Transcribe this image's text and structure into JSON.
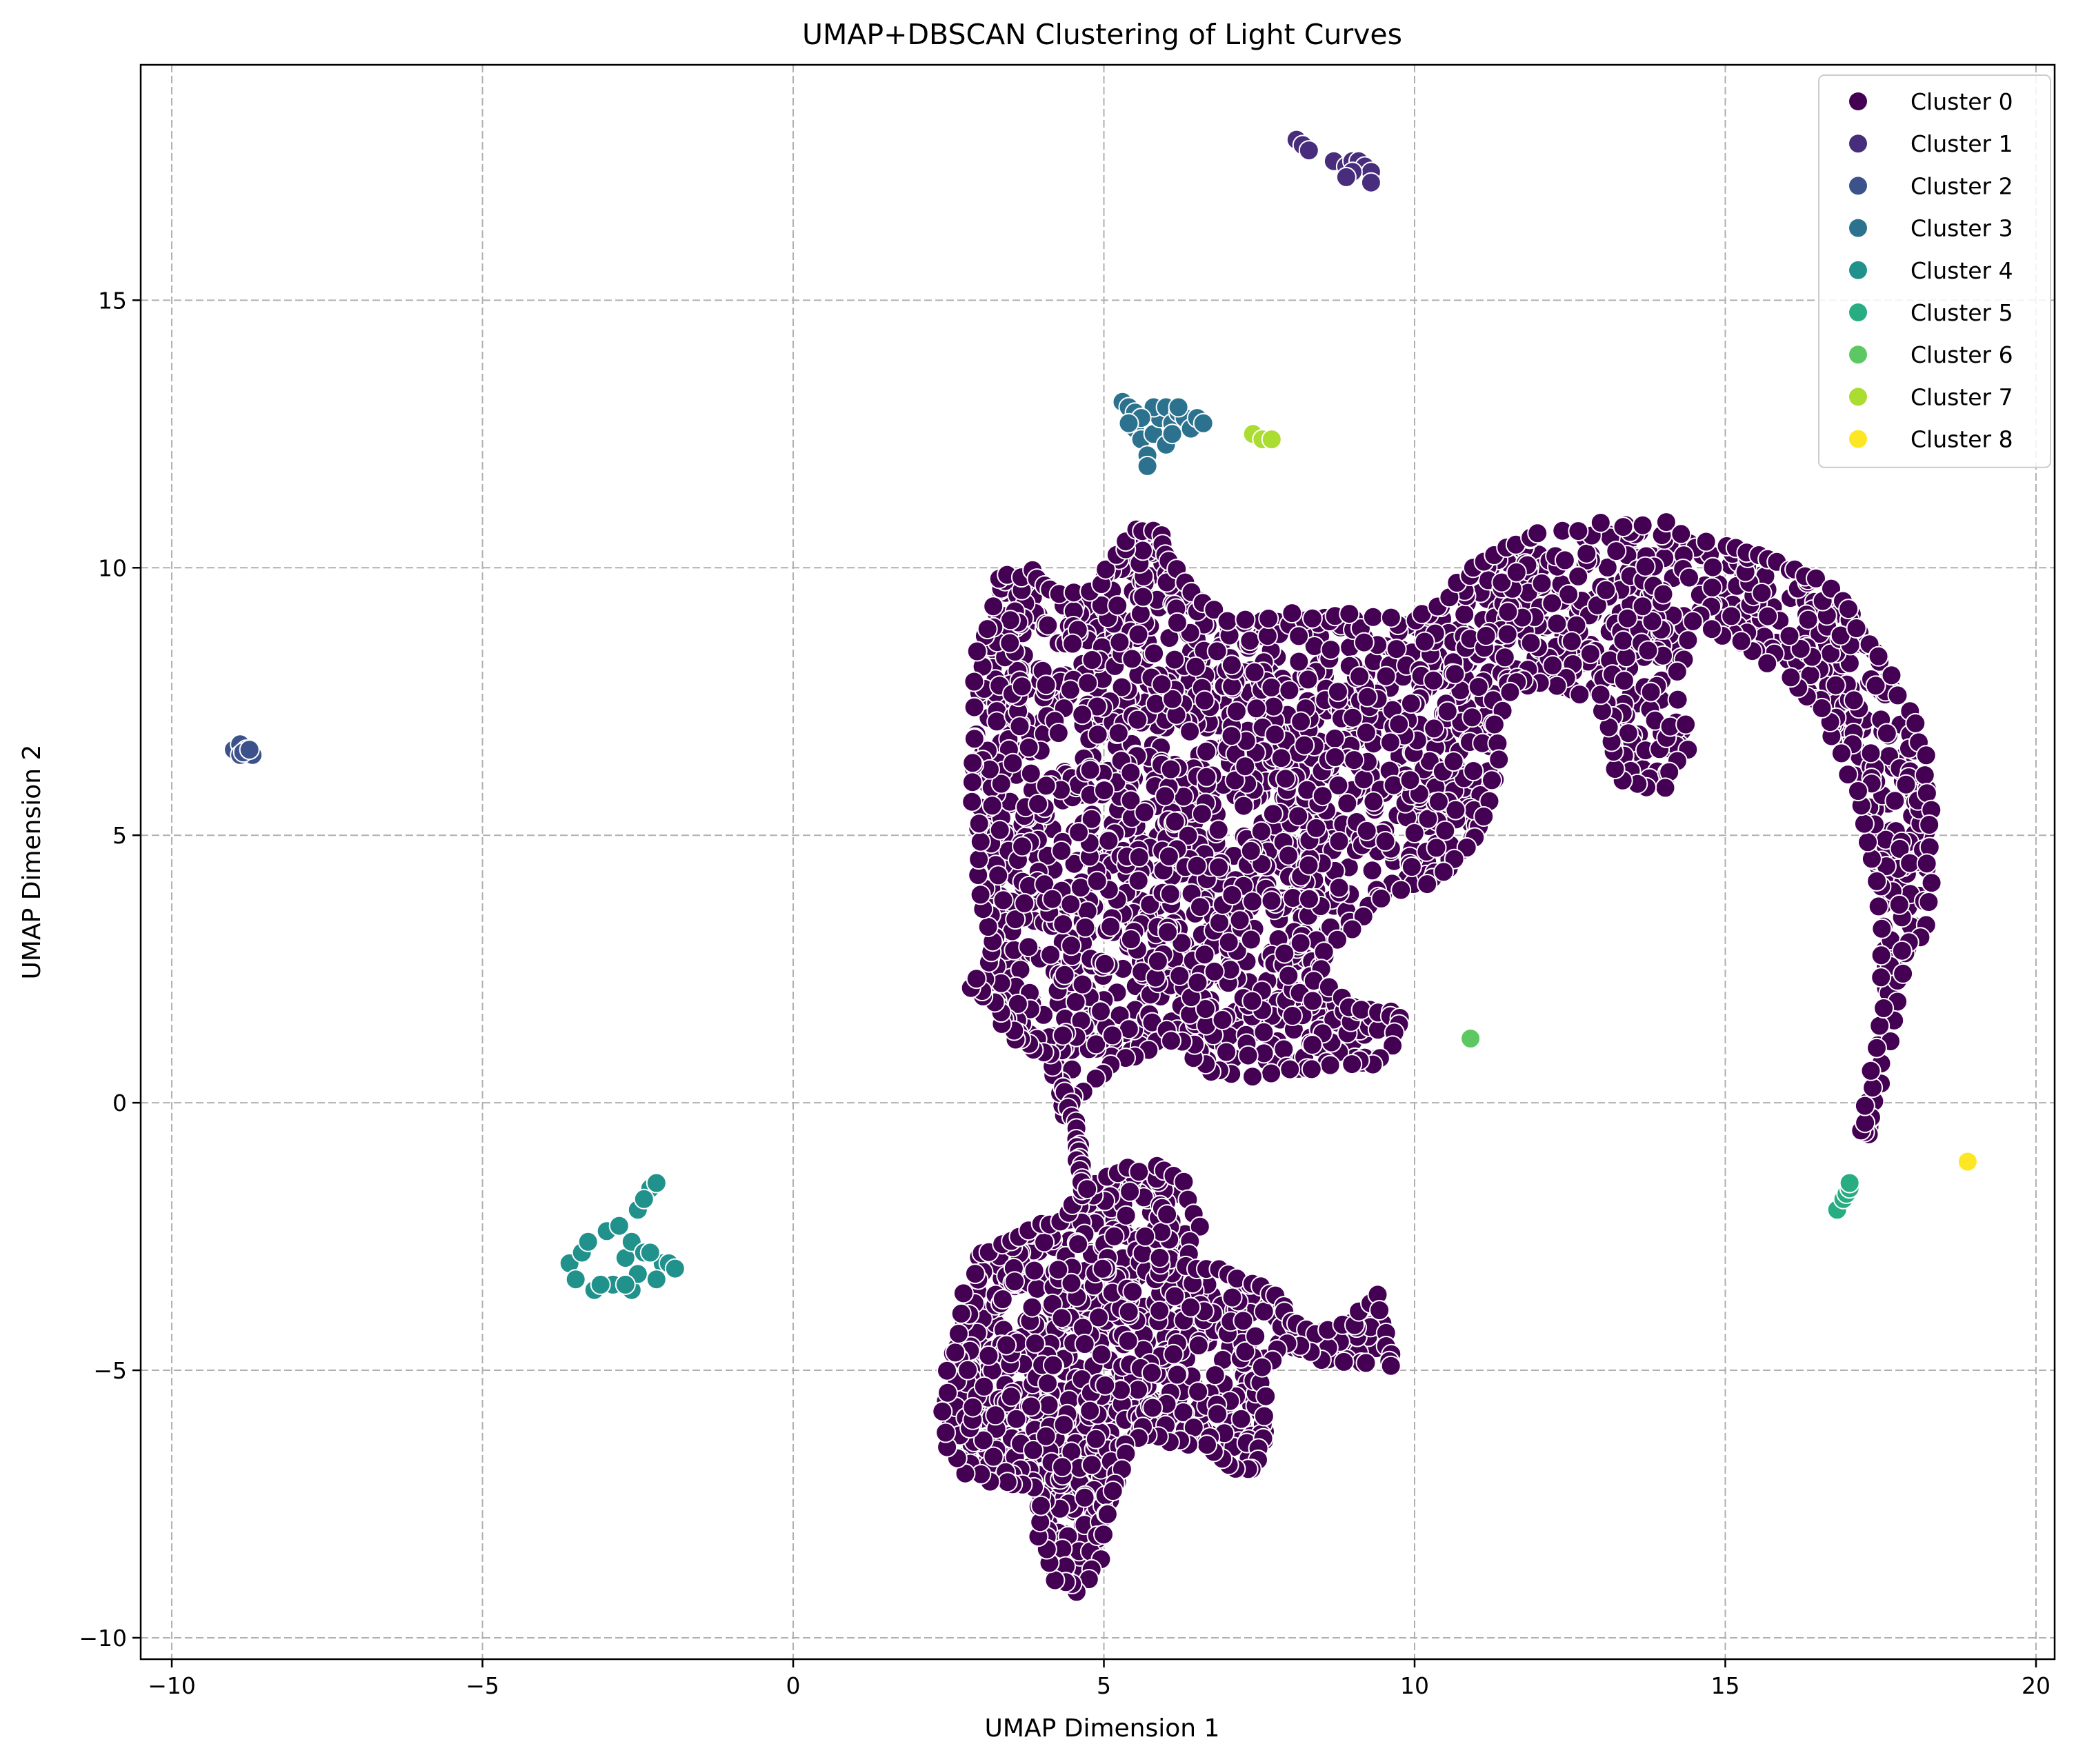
{
  "chart_data": {
    "type": "scatter",
    "title": "UMAP+DBSCAN Clustering of Light Curves",
    "xlabel": "UMAP Dimension 1",
    "ylabel": "UMAP Dimension 2",
    "xlim": [
      -10.5,
      20.3
    ],
    "ylim": [
      -10.4,
      19.4
    ],
    "xticks": [
      -10,
      -5,
      0,
      5,
      10,
      15,
      20
    ],
    "yticks": [
      -10,
      -5,
      0,
      5,
      10,
      15
    ],
    "xtick_labels": [
      "−10",
      "−5",
      "0",
      "5",
      "10",
      "15",
      "20"
    ],
    "ytick_labels": [
      "−10",
      "−5",
      "0",
      "5",
      "10",
      "15"
    ],
    "grid": true,
    "legend_position": "top-right",
    "series": [
      {
        "name": "Cluster 0",
        "color": "#440154",
        "regions": [
          {
            "kind": "blob",
            "outline": [
              [
                2.9,
                6.8
              ],
              [
                3.0,
                8.4
              ],
              [
                3.3,
                9.8
              ],
              [
                3.8,
                9.9
              ],
              [
                4.1,
                9.6
              ],
              [
                4.8,
                9.5
              ],
              [
                5.2,
                10.2
              ],
              [
                5.5,
                10.7
              ],
              [
                5.9,
                10.6
              ],
              [
                6.0,
                10.1
              ],
              [
                6.4,
                9.6
              ],
              [
                7.0,
                9.0
              ],
              [
                8.0,
                9.1
              ],
              [
                9.0,
                9.1
              ],
              [
                10.0,
                9.0
              ],
              [
                10.5,
                9.5
              ],
              [
                11.0,
                10.0
              ],
              [
                11.5,
                10.4
              ],
              [
                12.0,
                10.6
              ],
              [
                13.0,
                10.8
              ],
              [
                14.0,
                10.8
              ],
              [
                15.0,
                10.4
              ],
              [
                15.5,
                10.2
              ],
              [
                16.0,
                10.0
              ],
              [
                16.5,
                9.8
              ],
              [
                17.0,
                9.2
              ],
              [
                17.5,
                8.3
              ],
              [
                18.0,
                7.3
              ],
              [
                18.2,
                6.5
              ],
              [
                18.3,
                5.5
              ],
              [
                18.3,
                4.5
              ],
              [
                18.2,
                3.3
              ],
              [
                17.9,
                2.8
              ],
              [
                17.7,
                1.5
              ],
              [
                17.5,
                0.3
              ],
              [
                17.3,
                -0.6
              ],
              [
                17.2,
                -0.4
              ],
              [
                17.4,
                0.6
              ],
              [
                17.5,
                1.8
              ],
              [
                17.5,
                3.3
              ],
              [
                17.4,
                4.5
              ],
              [
                17.2,
                5.5
              ],
              [
                16.9,
                6.5
              ],
              [
                16.5,
                7.4
              ],
              [
                16.0,
                8.0
              ],
              [
                15.2,
                8.6
              ],
              [
                14.5,
                9.0
              ],
              [
                14.2,
                8.0
              ],
              [
                14.4,
                6.6
              ],
              [
                14.0,
                5.9
              ],
              [
                13.3,
                6.0
              ],
              [
                13.2,
                6.8
              ],
              [
                13.0,
                7.6
              ],
              [
                12.0,
                7.8
              ],
              [
                11.6,
                7.9
              ],
              [
                11.3,
                7.1
              ],
              [
                11.3,
                6.0
              ],
              [
                11.0,
                5.0
              ],
              [
                10.5,
                4.3
              ],
              [
                9.5,
                3.8
              ],
              [
                8.7,
                3.0
              ],
              [
                8.4,
                2.3
              ],
              [
                9.0,
                1.8
              ],
              [
                9.6,
                1.7
              ],
              [
                9.8,
                1.5
              ],
              [
                9.5,
                0.8
              ],
              [
                9.0,
                0.7
              ],
              [
                8.0,
                0.6
              ],
              [
                7.0,
                0.5
              ],
              [
                6.6,
                0.7
              ],
              [
                6.3,
                1.2
              ],
              [
                5.5,
                0.9
              ],
              [
                5.0,
                0.6
              ],
              [
                4.5,
                0.1
              ],
              [
                4.4,
                -0.2
              ],
              [
                4.3,
                0.4
              ],
              [
                4.1,
                0.9
              ],
              [
                3.8,
                1.1
              ],
              [
                3.5,
                1.3
              ],
              [
                3.2,
                1.9
              ],
              [
                2.9,
                2.1
              ],
              [
                3.2,
                2.8
              ],
              [
                3.1,
                3.6
              ],
              [
                3.0,
                4.6
              ],
              [
                2.9,
                5.6
              ]
            ],
            "count": 2400
          },
          {
            "kind": "blob",
            "outline": [
              [
                3.0,
                -2.8
              ],
              [
                3.5,
                -2.6
              ],
              [
                4.0,
                -2.3
              ],
              [
                4.4,
                -2.1
              ],
              [
                4.7,
                -1.6
              ],
              [
                5.2,
                -1.3
              ],
              [
                5.8,
                -1.2
              ],
              [
                6.3,
                -1.5
              ],
              [
                6.5,
                -2.3
              ],
              [
                6.3,
                -3.1
              ],
              [
                6.8,
                -3.1
              ],
              [
                7.4,
                -3.4
              ],
              [
                7.8,
                -3.6
              ],
              [
                8.0,
                -4.1
              ],
              [
                8.4,
                -4.3
              ],
              [
                9.0,
                -4.1
              ],
              [
                9.4,
                -3.6
              ],
              [
                9.6,
                -4.6
              ],
              [
                9.6,
                -4.9
              ],
              [
                8.5,
                -4.8
              ],
              [
                7.9,
                -4.5
              ],
              [
                7.6,
                -5.0
              ],
              [
                7.6,
                -6.3
              ],
              [
                7.4,
                -6.9
              ],
              [
                7.0,
                -6.8
              ],
              [
                6.6,
                -6.4
              ],
              [
                6.0,
                -6.3
              ],
              [
                5.6,
                -6.1
              ],
              [
                5.3,
                -6.6
              ],
              [
                5.2,
                -7.3
              ],
              [
                4.9,
                -8.5
              ],
              [
                4.6,
                -9.1
              ],
              [
                4.2,
                -8.9
              ],
              [
                4.0,
                -8.1
              ],
              [
                3.9,
                -7.2
              ],
              [
                3.4,
                -7.1
              ],
              [
                2.8,
                -6.9
              ],
              [
                2.4,
                -6.2
              ],
              [
                2.5,
                -5.0
              ],
              [
                2.7,
                -4.0
              ]
            ],
            "count": 900
          },
          {
            "kind": "walk",
            "points": [
              [
                4.4,
                0.3
              ],
              [
                4.5,
                -0.3
              ],
              [
                4.6,
                -0.8
              ],
              [
                4.6,
                -1.2
              ],
              [
                4.7,
                -1.6
              ]
            ],
            "count": 18,
            "jitter": 0.12
          }
        ]
      },
      {
        "name": "Cluster 1",
        "color": "#472d7b",
        "points": [
          [
            8.1,
            18.0
          ],
          [
            8.2,
            17.9
          ],
          [
            8.3,
            17.8
          ],
          [
            8.7,
            17.6
          ],
          [
            8.9,
            17.5
          ],
          [
            9.0,
            17.6
          ],
          [
            9.1,
            17.6
          ],
          [
            9.2,
            17.5
          ],
          [
            9.3,
            17.4
          ],
          [
            9.3,
            17.2
          ],
          [
            9.0,
            17.4
          ],
          [
            8.9,
            17.3
          ]
        ]
      },
      {
        "name": "Cluster 2",
        "color": "#3b528b",
        "points": [
          [
            -9.0,
            6.6
          ],
          [
            -8.9,
            6.7
          ],
          [
            -8.8,
            6.6
          ],
          [
            -8.7,
            6.5
          ],
          [
            -8.9,
            6.5
          ],
          [
            -8.85,
            6.55
          ],
          [
            -8.75,
            6.6
          ]
        ]
      },
      {
        "name": "Cluster 3",
        "color": "#2c728e",
        "points": [
          [
            5.3,
            13.1
          ],
          [
            5.4,
            13.0
          ],
          [
            5.5,
            12.9
          ],
          [
            5.5,
            12.6
          ],
          [
            5.6,
            12.4
          ],
          [
            5.7,
            12.1
          ],
          [
            5.7,
            11.9
          ],
          [
            5.8,
            12.5
          ],
          [
            5.9,
            12.8
          ],
          [
            5.8,
            13.0
          ],
          [
            6.0,
            13.0
          ],
          [
            6.1,
            12.7
          ],
          [
            6.2,
            12.9
          ],
          [
            6.3,
            12.8
          ],
          [
            6.4,
            12.6
          ],
          [
            6.5,
            12.8
          ],
          [
            6.6,
            12.7
          ],
          [
            6.0,
            12.3
          ],
          [
            5.6,
            12.8
          ],
          [
            5.4,
            12.7
          ],
          [
            6.2,
            13.0
          ],
          [
            6.1,
            12.5
          ]
        ]
      },
      {
        "name": "Cluster 4",
        "color": "#21918c",
        "points": [
          [
            -3.6,
            -3.0
          ],
          [
            -3.5,
            -3.3
          ],
          [
            -3.4,
            -2.8
          ],
          [
            -3.3,
            -2.6
          ],
          [
            -3.2,
            -3.5
          ],
          [
            -3.0,
            -2.4
          ],
          [
            -2.9,
            -3.4
          ],
          [
            -2.8,
            -2.3
          ],
          [
            -2.7,
            -2.9
          ],
          [
            -2.6,
            -3.5
          ],
          [
            -2.6,
            -2.6
          ],
          [
            -2.5,
            -2.0
          ],
          [
            -2.4,
            -2.8
          ],
          [
            -2.3,
            -1.6
          ],
          [
            -2.2,
            -1.5
          ],
          [
            -2.1,
            -3.0
          ],
          [
            -2.2,
            -3.3
          ],
          [
            -2.5,
            -3.2
          ],
          [
            -2.0,
            -3.0
          ],
          [
            -1.9,
            -3.1
          ],
          [
            -3.1,
            -3.4
          ],
          [
            -2.8,
            -2.3
          ],
          [
            -2.4,
            -1.8
          ],
          [
            -2.7,
            -3.4
          ],
          [
            -2.3,
            -2.8
          ]
        ]
      },
      {
        "name": "Cluster 5",
        "color": "#27ad81",
        "points": [
          [
            16.8,
            -2.0
          ],
          [
            16.9,
            -1.8
          ],
          [
            16.95,
            -1.7
          ],
          [
            17.0,
            -1.6
          ],
          [
            17.0,
            -1.5
          ]
        ]
      },
      {
        "name": "Cluster 6",
        "color": "#5dc863",
        "points": [
          [
            10.9,
            1.2
          ]
        ]
      },
      {
        "name": "Cluster 7",
        "color": "#aadc32",
        "points": [
          [
            7.4,
            12.5
          ],
          [
            7.55,
            12.4
          ],
          [
            7.7,
            12.4
          ]
        ]
      },
      {
        "name": "Cluster 8",
        "color": "#fde725",
        "points": [
          [
            18.9,
            -1.1
          ]
        ]
      }
    ]
  }
}
